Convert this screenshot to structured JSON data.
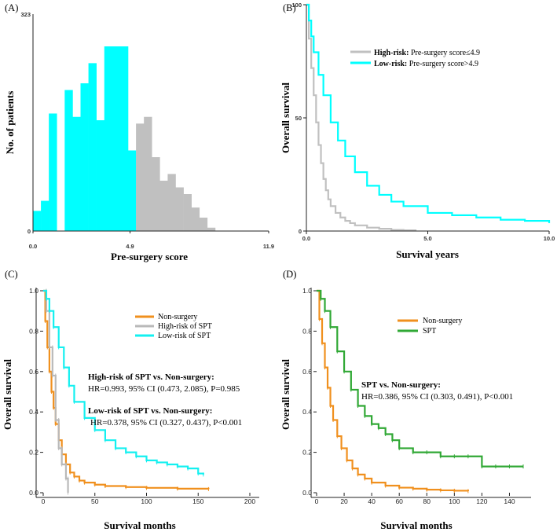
{
  "panels": {
    "A": {
      "label": "(A)"
    },
    "B": {
      "label": "(B)"
    },
    "C": {
      "label": "(C)"
    },
    "D": {
      "label": "(D)"
    }
  },
  "chart_data": [
    {
      "id": "A",
      "type": "bar",
      "title": "",
      "xlabel": "Pre-surgery score",
      "ylabel": "No. of patients",
      "xlim": [
        0.0,
        11.9
      ],
      "ylim": [
        0,
        323
      ],
      "xticks": [
        "0.0",
        "4.9",
        "11.9"
      ],
      "yticks": [
        "0",
        "323"
      ],
      "threshold": 4.9,
      "bin_width": 0.4,
      "x_start": 0.0,
      "values": [
        30,
        45,
        175,
        0,
        210,
        170,
        220,
        250,
        165,
        275,
        275,
        275,
        120,
        160,
        170,
        110,
        75,
        85,
        65,
        55,
        35,
        20,
        5
      ],
      "series": [
        {
          "name": "Low-risk",
          "color": "#00ffff"
        },
        {
          "name": "High-risk",
          "color": "#c0c0c0"
        }
      ]
    },
    {
      "id": "B",
      "type": "line",
      "xlabel": "Survival years",
      "ylabel": "Overall survival",
      "xlim": [
        0.0,
        10.0
      ],
      "ylim": [
        0,
        100
      ],
      "xticks": [
        "0.0",
        "5.0",
        "10.0"
      ],
      "yticks": [
        "0",
        "50",
        "100"
      ],
      "legend": [
        {
          "bold": "High-risk:",
          "text": "Pre-surgery score≤4.9",
          "color": "#c0c0c0"
        },
        {
          "bold": "Low-risk:",
          "text": "Pre-surgery score>4.9",
          "color": "#00ffff"
        }
      ],
      "series": [
        {
          "name": "High-risk",
          "color": "#c0c0c0",
          "x": [
            0,
            0.1,
            0.2,
            0.3,
            0.4,
            0.5,
            0.6,
            0.7,
            0.8,
            0.9,
            1.0,
            1.2,
            1.4,
            1.6,
            1.8,
            2.0,
            2.5,
            3.0,
            3.5,
            4.0,
            4.5
          ],
          "y": [
            100,
            85,
            72,
            60,
            48,
            38,
            30,
            23,
            18,
            14,
            11,
            8,
            6,
            4.5,
            3.5,
            2.5,
            1.5,
            1,
            0.5,
            0.3,
            0
          ]
        },
        {
          "name": "Low-risk",
          "color": "#00ffff",
          "x": [
            0,
            0.1,
            0.2,
            0.3,
            0.5,
            0.7,
            1.0,
            1.3,
            1.6,
            2.0,
            2.5,
            3.0,
            3.5,
            4.0,
            5.0,
            6.0,
            7.0,
            8.0,
            9.0,
            10.0
          ],
          "y": [
            100,
            93,
            86,
            79,
            69,
            60,
            48,
            40,
            33,
            26,
            20,
            16,
            13,
            11,
            8,
            7,
            6,
            5,
            4.5,
            3.5
          ]
        }
      ]
    },
    {
      "id": "C",
      "type": "line",
      "xlabel": "Survival months",
      "ylabel": "Overall survival",
      "xlim": [
        0,
        200
      ],
      "ylim": [
        0.0,
        1.0
      ],
      "xticks": [
        "0",
        "50",
        "100",
        "150",
        "200"
      ],
      "yticks": [
        "0.0",
        "0.2",
        "0.4",
        "0.6",
        "0.8",
        "1.0"
      ],
      "legend": [
        {
          "name": "Non-surgery",
          "color": "#f0901e"
        },
        {
          "name": "High-risk of SPT",
          "color": "#b9b9b9"
        },
        {
          "name": "Low-risk of SPT",
          "color": "#14f0f0"
        }
      ],
      "annotations": [
        {
          "bold": "High-risk of SPT vs. Non-surgery:",
          "text": "HR=0.993, 95% CI (0.473, 2.085), P=0.985"
        },
        {
          "bold": "Low-risk of SPT vs. Non-surgery:",
          "text": "HR=0.378, 95% CI (0.327, 0.437), P<0.001"
        }
      ],
      "series": [
        {
          "name": "Non-surgery",
          "color": "#f0901e",
          "x": [
            0,
            2,
            4,
            6,
            8,
            10,
            12,
            15,
            18,
            22,
            26,
            30,
            35,
            40,
            50,
            60,
            80,
            100,
            130,
            160
          ],
          "y": [
            1.0,
            0.85,
            0.72,
            0.6,
            0.5,
            0.42,
            0.34,
            0.26,
            0.19,
            0.14,
            0.1,
            0.08,
            0.06,
            0.05,
            0.04,
            0.033,
            0.028,
            0.024,
            0.02,
            0.018
          ]
        },
        {
          "name": "High-risk of SPT",
          "color": "#b9b9b9",
          "x": [
            0,
            3,
            3,
            6,
            6,
            9,
            9,
            12,
            12,
            15,
            15,
            18,
            18,
            22,
            22,
            24,
            24
          ],
          "y": [
            1.0,
            1.0,
            0.9,
            0.9,
            0.72,
            0.72,
            0.58,
            0.58,
            0.36,
            0.36,
            0.22,
            0.22,
            0.14,
            0.14,
            0.07,
            0.07,
            0.0
          ]
        },
        {
          "name": "Low-risk of SPT",
          "color": "#14f0f0",
          "x": [
            0,
            3,
            6,
            10,
            15,
            20,
            25,
            30,
            40,
            50,
            60,
            70,
            80,
            90,
            100,
            110,
            120,
            130,
            140,
            150,
            155
          ],
          "y": [
            1.0,
            0.96,
            0.9,
            0.82,
            0.72,
            0.62,
            0.53,
            0.45,
            0.37,
            0.31,
            0.26,
            0.22,
            0.2,
            0.18,
            0.16,
            0.15,
            0.14,
            0.13,
            0.12,
            0.095,
            0.09
          ]
        }
      ]
    },
    {
      "id": "D",
      "type": "line",
      "xlabel": "Survival months",
      "ylabel": "Overall survival",
      "xlim": [
        0,
        150
      ],
      "ylim": [
        0.0,
        1.0
      ],
      "xticks": [
        "0",
        "20",
        "40",
        "60",
        "80",
        "100",
        "120",
        "140"
      ],
      "yticks": [
        "0.0",
        "0.2",
        "0.4",
        "0.6",
        "0.8",
        "1.0"
      ],
      "legend": [
        {
          "name": "Non-surgery",
          "color": "#f0901e"
        },
        {
          "name": "SPT",
          "color": "#30a835"
        }
      ],
      "annotations": [
        {
          "bold": "SPT vs. Non-surgery:",
          "text": "HR=0.386, 95% CI (0.303, 0.491), P<0.001"
        }
      ],
      "series": [
        {
          "name": "Non-surgery",
          "color": "#f0901e",
          "x": [
            0,
            2,
            4,
            6,
            8,
            10,
            12,
            15,
            18,
            22,
            26,
            30,
            35,
            40,
            50,
            60,
            70,
            80,
            90,
            100,
            110
          ],
          "y": [
            1.0,
            0.86,
            0.74,
            0.62,
            0.52,
            0.43,
            0.36,
            0.28,
            0.22,
            0.16,
            0.12,
            0.09,
            0.07,
            0.05,
            0.035,
            0.025,
            0.02,
            0.015,
            0.012,
            0.01,
            0.008
          ]
        },
        {
          "name": "SPT",
          "color": "#30a835",
          "x": [
            0,
            3,
            6,
            10,
            15,
            20,
            25,
            30,
            35,
            40,
            45,
            50,
            55,
            60,
            70,
            80,
            90,
            100,
            110,
            120,
            130,
            140,
            150
          ],
          "y": [
            1.0,
            0.96,
            0.9,
            0.82,
            0.7,
            0.6,
            0.51,
            0.43,
            0.38,
            0.34,
            0.32,
            0.29,
            0.26,
            0.22,
            0.2,
            0.2,
            0.18,
            0.18,
            0.18,
            0.13,
            0.13,
            0.13,
            0.13
          ]
        }
      ]
    }
  ]
}
